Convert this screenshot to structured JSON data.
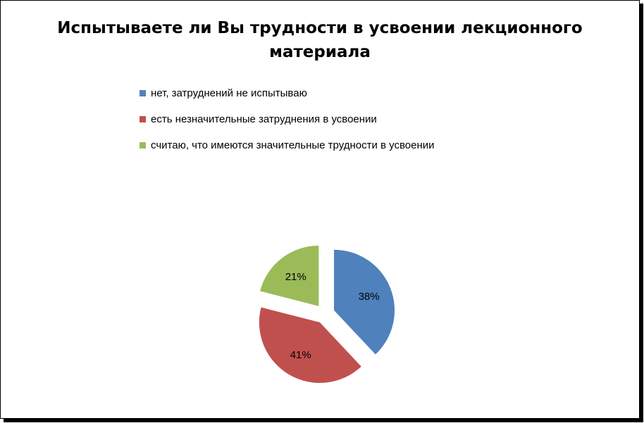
{
  "chart_data": {
    "type": "pie",
    "title": "Испытываете ли Вы трудности в усвоении лекционного материала",
    "exploded": true,
    "series": [
      {
        "name": "нет, затруднений не испытываю",
        "value": 38,
        "label": "38%",
        "color": "#4F81BD"
      },
      {
        "name": "есть незначительные затруднения в усвоении",
        "value": 41,
        "label": "41%",
        "color": "#C0504D"
      },
      {
        "name": "считаю, что имеются значительные трудности в усвоении",
        "value": 21,
        "label": "21%",
        "color": "#9BBB59"
      }
    ],
    "legend_position": "top"
  }
}
